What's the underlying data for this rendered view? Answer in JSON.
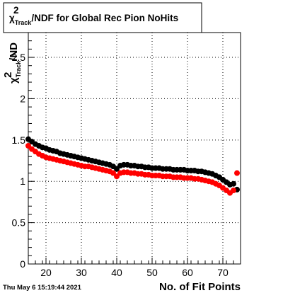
{
  "chart_data": {
    "type": "scatter",
    "title": "χ²_Track/NDF for Global Rec Pion NoHits",
    "title_parts": {
      "chi": "χ",
      "sup": "2",
      "sub": "Track",
      "rest": "/NDF for Global Rec Pion NoHits"
    },
    "xlabel": "No. of Fit Points",
    "ylabel": "χ²_Track/NDF",
    "ylabel_parts": {
      "chi": "χ",
      "sup": "2",
      "sub": "Track",
      "rest": "/ND"
    },
    "xlim": [
      15,
      75
    ],
    "ylim": [
      0,
      2.8
    ],
    "x_ticks": [
      20,
      30,
      40,
      50,
      60,
      70
    ],
    "y_ticks": [
      0,
      0.5,
      1,
      1.5,
      2,
      2.5
    ],
    "y_tick_labels": [
      "0",
      "0.5",
      "1",
      "1.5",
      "2",
      "2.5"
    ],
    "grid": true,
    "timestamp": "Thu May  6 15:19:44 2021",
    "series": [
      {
        "color": "#000000",
        "x": [
          15,
          16,
          17,
          18,
          19,
          20,
          21,
          22,
          23,
          24,
          25,
          26,
          27,
          28,
          29,
          30,
          31,
          32,
          33,
          34,
          35,
          36,
          37,
          38,
          39,
          40,
          41,
          42,
          43,
          44,
          45,
          46,
          47,
          48,
          49,
          50,
          51,
          52,
          53,
          54,
          55,
          56,
          57,
          58,
          59,
          60,
          61,
          62,
          63,
          64,
          65,
          66,
          67,
          68,
          69,
          70,
          71,
          72,
          73,
          74
        ],
        "y": [
          1.51,
          1.48,
          1.45,
          1.43,
          1.41,
          1.4,
          1.38,
          1.37,
          1.36,
          1.34,
          1.33,
          1.32,
          1.31,
          1.3,
          1.29,
          1.28,
          1.27,
          1.26,
          1.25,
          1.24,
          1.23,
          1.22,
          1.21,
          1.2,
          1.18,
          1.15,
          1.19,
          1.2,
          1.2,
          1.19,
          1.19,
          1.18,
          1.18,
          1.17,
          1.17,
          1.16,
          1.16,
          1.16,
          1.15,
          1.15,
          1.15,
          1.14,
          1.14,
          1.14,
          1.14,
          1.13,
          1.13,
          1.13,
          1.12,
          1.12,
          1.11,
          1.1,
          1.09,
          1.07,
          1.05,
          1.02,
          0.99,
          0.96,
          0.97,
          0.9
        ]
      },
      {
        "color": "#ff0000",
        "x": [
          15,
          16,
          17,
          18,
          19,
          20,
          21,
          22,
          23,
          24,
          25,
          26,
          27,
          28,
          29,
          30,
          31,
          32,
          33,
          34,
          35,
          36,
          37,
          38,
          39,
          40,
          41,
          42,
          43,
          44,
          45,
          46,
          47,
          48,
          49,
          50,
          51,
          52,
          53,
          54,
          55,
          56,
          57,
          58,
          59,
          60,
          61,
          62,
          63,
          64,
          65,
          66,
          67,
          68,
          69,
          70,
          71,
          72,
          73,
          74
        ],
        "y": [
          1.43,
          1.39,
          1.36,
          1.33,
          1.31,
          1.29,
          1.28,
          1.27,
          1.26,
          1.25,
          1.24,
          1.23,
          1.22,
          1.21,
          1.2,
          1.19,
          1.18,
          1.18,
          1.17,
          1.16,
          1.15,
          1.14,
          1.13,
          1.12,
          1.1,
          1.06,
          1.1,
          1.11,
          1.11,
          1.1,
          1.1,
          1.09,
          1.09,
          1.08,
          1.08,
          1.07,
          1.07,
          1.07,
          1.06,
          1.06,
          1.06,
          1.05,
          1.05,
          1.05,
          1.04,
          1.04,
          1.04,
          1.03,
          1.03,
          1.02,
          1.01,
          1.0,
          0.99,
          0.97,
          0.95,
          0.92,
          0.89,
          0.86,
          0.89,
          1.1
        ]
      }
    ]
  }
}
